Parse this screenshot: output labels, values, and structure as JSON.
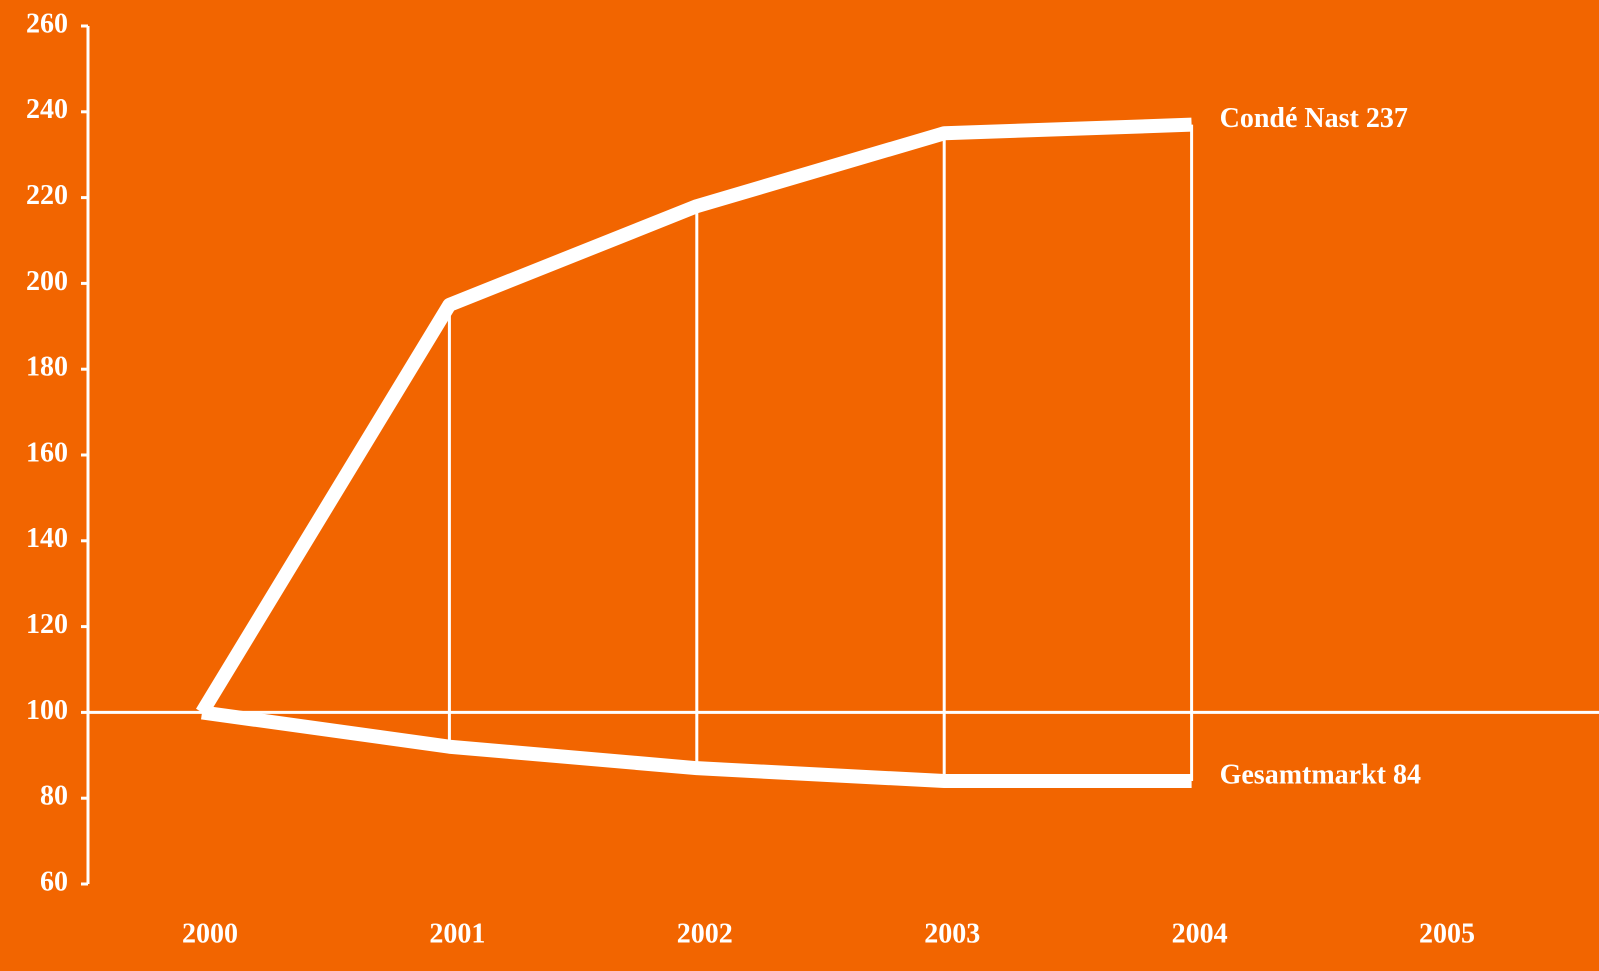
{
  "chart_data": {
    "type": "line",
    "categories": [
      "2000",
      "2001",
      "2002",
      "2003",
      "2004",
      "2005"
    ],
    "series": [
      {
        "name": "Condé Nast 237",
        "color": "#ffffff",
        "values": [
          100,
          195,
          218,
          235,
          237,
          null
        ]
      },
      {
        "name": "Gesamtmarkt 84",
        "color": "#ffffff",
        "values": [
          100,
          92,
          87,
          84,
          84,
          null
        ]
      }
    ],
    "ylim": [
      60,
      260
    ],
    "yticks": [
      60,
      80,
      100,
      120,
      140,
      160,
      180,
      200,
      220,
      240,
      260
    ],
    "hline": 100,
    "drop_lines": true,
    "background": "#f26500"
  }
}
